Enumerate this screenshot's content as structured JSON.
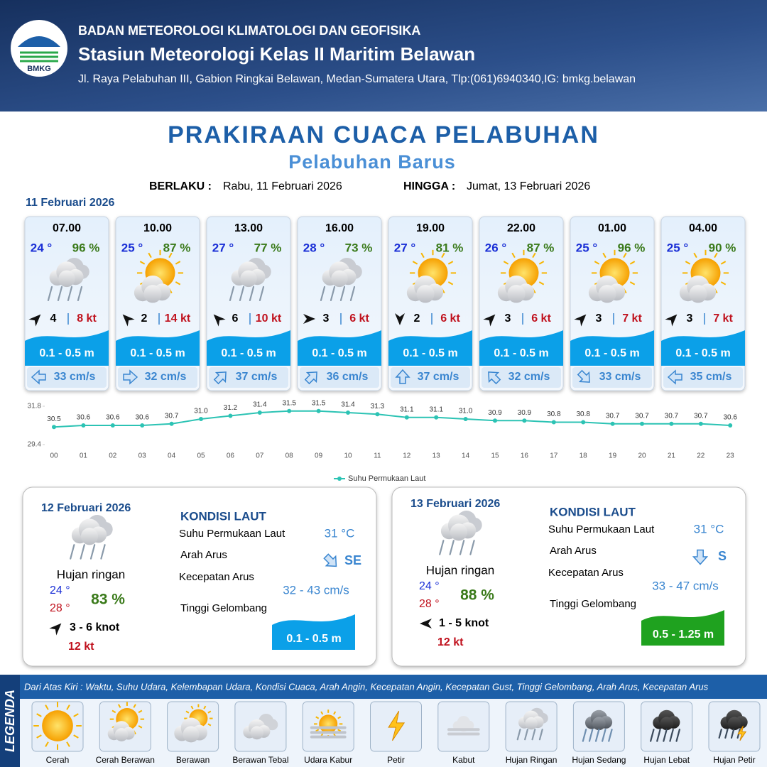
{
  "header": {
    "logo": "BMKG",
    "agency": "BADAN METEOROLOGI KLIMATOLOGI DAN GEOFISIKA",
    "station": "Stasiun Meteorologi Kelas II Maritim Belawan",
    "address": "Jl. Raya Pelabuhan III, Gabion Ringkai Belawan, Medan-Sumatera Utara, Tlp:(061)6940340,IG: bmkg.belawan"
  },
  "title": "PRAKIRAAN CUACA PELABUHAN",
  "subtitle": "Pelabuhan Barus",
  "validity": {
    "from_label": "BERLAKU :",
    "from": "Rabu, 11 Februari 2026",
    "to_label": "HINGGA :",
    "to": "Jumat, 13 Februari 2026"
  },
  "day1": {
    "date": "11 Februari 2026",
    "cards": [
      {
        "time": "07.00",
        "temp": "24 °",
        "humidity": "96 %",
        "icon": "hujan-ringan",
        "wind_angle": 45,
        "wind": "4",
        "gust": "8 kt",
        "wave": "0.1 - 0.5 m",
        "current_angle": 270,
        "current": "33 cm/s"
      },
      {
        "time": "10.00",
        "temp": "25 °",
        "humidity": "87 %",
        "icon": "cerah-berawan",
        "wind_angle": -45,
        "wind": "2",
        "gust": "14 kt",
        "wave": "0.1 - 0.5 m",
        "current_angle": 90,
        "current": "32 cm/s"
      },
      {
        "time": "13.00",
        "temp": "27 °",
        "humidity": "77 %",
        "icon": "hujan-ringan",
        "wind_angle": -45,
        "wind": "6",
        "gust": "10 kt",
        "wave": "0.1 - 0.5 m",
        "current_angle": 45,
        "current": "37 cm/s"
      },
      {
        "time": "16.00",
        "temp": "28 °",
        "humidity": "73 %",
        "icon": "hujan-ringan",
        "wind_angle": 90,
        "wind": "3",
        "gust": "6 kt",
        "wave": "0.1 - 0.5 m",
        "current_angle": 45,
        "current": "36 cm/s"
      },
      {
        "time": "19.00",
        "temp": "27 °",
        "humidity": "81 %",
        "icon": "cerah-berawan",
        "wind_angle": 180,
        "wind": "2",
        "gust": "6 kt",
        "wave": "0.1 - 0.5 m",
        "current_angle": 0,
        "current": "37 cm/s"
      },
      {
        "time": "22.00",
        "temp": "26 °",
        "humidity": "87 %",
        "icon": "cerah-berawan",
        "wind_angle": 45,
        "wind": "3",
        "gust": "6 kt",
        "wave": "0.1 - 0.5 m",
        "current_angle": 315,
        "current": "32 cm/s"
      },
      {
        "time": "01.00",
        "temp": "25 °",
        "humidity": "96 %",
        "icon": "cerah-berawan",
        "wind_angle": 45,
        "wind": "3",
        "gust": "7 kt",
        "wave": "0.1 - 0.5 m",
        "current_angle": 135,
        "current": "33 cm/s"
      },
      {
        "time": "04.00",
        "temp": "25 °",
        "humidity": "90 %",
        "icon": "cerah-berawan",
        "wind_angle": 45,
        "wind": "3",
        "gust": "7 kt",
        "wave": "0.1 - 0.5 m",
        "current_angle": 270,
        "current": "35 cm/s"
      }
    ]
  },
  "chart_data": {
    "type": "line",
    "categories": [
      "00",
      "01",
      "02",
      "03",
      "04",
      "05",
      "06",
      "07",
      "08",
      "09",
      "10",
      "11",
      "12",
      "13",
      "14",
      "15",
      "16",
      "17",
      "18",
      "19",
      "20",
      "21",
      "22",
      "23"
    ],
    "series": [
      {
        "name": "Suhu Permukaan Laut",
        "color": "#2cc3b4",
        "values": [
          30.5,
          30.6,
          30.6,
          30.6,
          30.7,
          31.0,
          31.2,
          31.4,
          31.5,
          31.5,
          31.4,
          31.3,
          31.1,
          31.1,
          31.0,
          30.9,
          30.9,
          30.8,
          30.8,
          30.7,
          30.7,
          30.7,
          30.7,
          30.6
        ],
        "value_labels": [
          "30.5",
          "30.6",
          "30.6",
          "30.6",
          "30.7",
          "31.0",
          "31.2",
          "31.4",
          "31.5",
          "31.5",
          "31.4",
          "31.3",
          "31.1",
          "31.1",
          "31.0",
          "30.9",
          "30.9",
          "30.8",
          "30.8",
          "30.7",
          "30.7",
          "30.7",
          "30.7",
          "30.6"
        ]
      }
    ],
    "ylim": [
      29.4,
      31.8
    ],
    "yticks": [
      29.4,
      31.8
    ],
    "grid": false,
    "legend": "bottom"
  },
  "panels": [
    {
      "date": "12 Februari 2026",
      "icon": "hujan-ringan",
      "weather": "Hujan ringan",
      "tmin": "24 °",
      "tmax": "28 °",
      "humidity": "83 %",
      "wind_angle": 45,
      "wind": "3  - 6 knot",
      "gust": "12 kt",
      "heading": "KONDISI LAUT",
      "sst_label": "Suhu Permukaan Laut",
      "sst": "31 °C",
      "dir_label": "Arah Arus",
      "current_angle": 135,
      "dir": "SE",
      "speed_label": "Kecepatan Arus",
      "speed": "32 - 43 cm/s",
      "wave_label": "Tinggi Gelombang",
      "wave": "0.1 - 0.5 m",
      "wave_color": "#0ba0e8"
    },
    {
      "date": "13 Februari 2026",
      "icon": "hujan-ringan",
      "weather": "Hujan ringan",
      "tmin": "24 °",
      "tmax": "28 °",
      "humidity": "88 %",
      "wind_angle": 270,
      "wind": "1  - 5 knot",
      "gust": "12 kt",
      "heading": "KONDISI LAUT",
      "sst_label": "Suhu Permukaan Laut",
      "sst": "31 °C",
      "dir_label": "Arah Arus",
      "current_angle": 180,
      "dir": "S",
      "speed_label": "Kecepatan Arus",
      "speed": "33  - 47 cm/s",
      "wave_label": "Tinggi Gelombang",
      "wave": "0.5 - 1.25 m",
      "wave_color": "#1fa21f"
    }
  ],
  "legend": {
    "title": "LEGENDA",
    "description": "Dari Atas Kiri : Waktu, Suhu Udara, Kelembapan Udara, Kondisi Cuaca, Arah Angin, Kecepatan Angin, Kecepatan Gust, Tinggi Gelombang, Arah Arus, Kecepatan Arus",
    "items": [
      {
        "label": "Cerah",
        "icon": "cerah"
      },
      {
        "label": "Cerah Berawan",
        "icon": "cerah-berawan"
      },
      {
        "label": "Berawan",
        "icon": "berawan"
      },
      {
        "label": "Berawan Tebal",
        "icon": "berawan-tebal"
      },
      {
        "label": "Udara Kabur",
        "icon": "udara-kabur"
      },
      {
        "label": "Petir",
        "icon": "petir"
      },
      {
        "label": "Kabut",
        "icon": "kabut"
      },
      {
        "label": "Hujan Ringan",
        "icon": "hujan-ringan"
      },
      {
        "label": "Hujan Sedang",
        "icon": "hujan-sedang"
      },
      {
        "label": "Hujan Lebat",
        "icon": "hujan-lebat"
      },
      {
        "label": "Hujan Petir",
        "icon": "hujan-petir"
      }
    ]
  }
}
